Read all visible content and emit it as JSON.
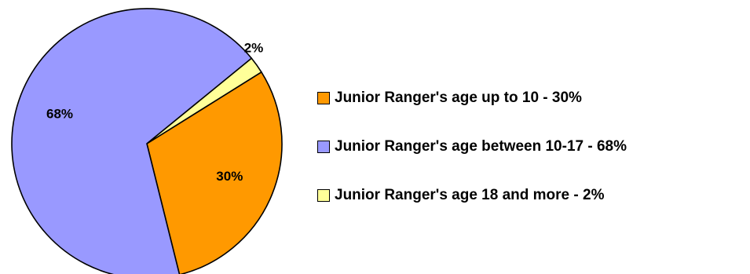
{
  "chart_data": {
    "type": "pie",
    "title": "",
    "start_angle_deg": 58,
    "legend_position": "right",
    "slices": [
      {
        "label": "Junior Ranger's age up to 10 - 30%",
        "value": 30,
        "value_label": "30%",
        "color": "#FF9900"
      },
      {
        "label": "Junior Ranger's age between 10-17 - 68%",
        "value": 68,
        "value_label": "68%",
        "color": "#9999FF"
      },
      {
        "label": "Junior Ranger's age 18 and more - 2%",
        "value": 2,
        "value_label": "2%",
        "color": "#FFFF99"
      }
    ]
  }
}
